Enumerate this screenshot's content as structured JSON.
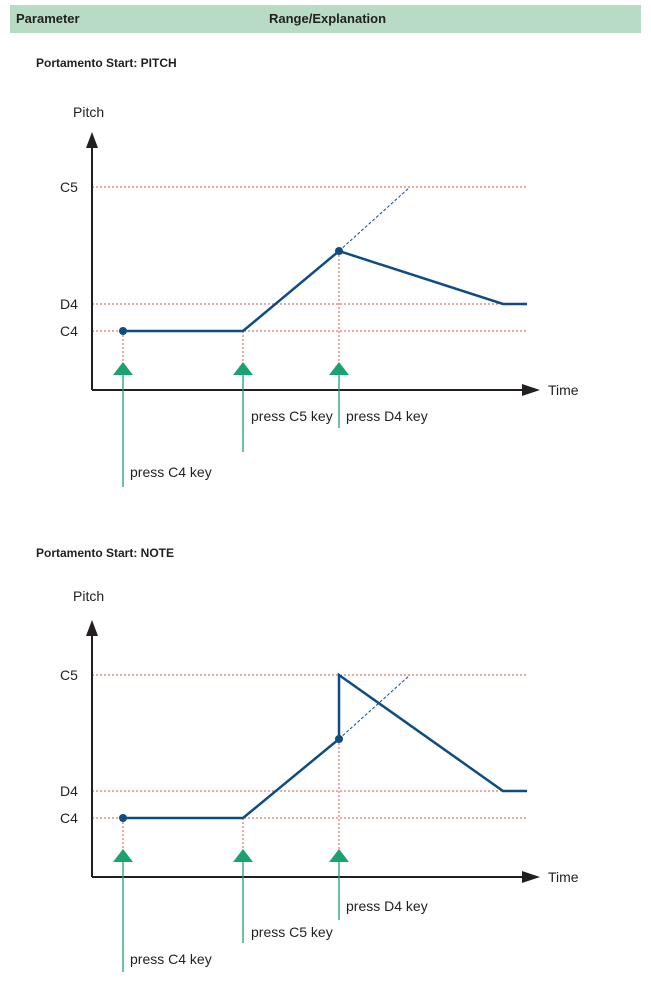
{
  "table_header": {
    "col1": "Parameter",
    "col2": "Range/Explanation"
  },
  "colors": {
    "header_bg": "#b7dbc4",
    "curve": "#0f4c81",
    "guide": "#d9534f",
    "arrow": "#1aa36f"
  },
  "diagrams": [
    {
      "title": "Portamento Start: PITCH",
      "y_axis_label": "Pitch",
      "x_axis_label": "Time",
      "pitch_labels": [
        "C5",
        "D4",
        "C4"
      ],
      "key_presses": [
        "press C4 key",
        "press C5 key",
        "press D4 key"
      ]
    },
    {
      "title": "Portamento Start: NOTE",
      "y_axis_label": "Pitch",
      "x_axis_label": "Time",
      "pitch_labels": [
        "C5",
        "D4",
        "C4"
      ],
      "key_presses": [
        "press C4 key",
        "press C5 key",
        "press D4 key"
      ]
    }
  ]
}
